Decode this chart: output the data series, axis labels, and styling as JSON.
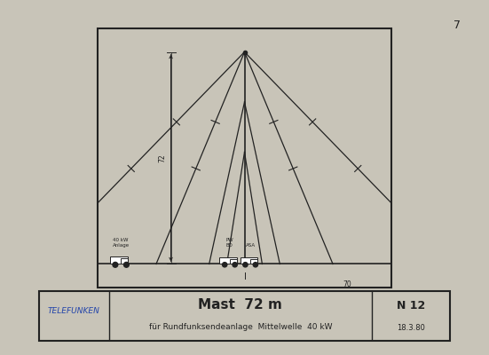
{
  "bg_color": "#f0eeea",
  "border_color": "#222222",
  "line_color": "#222222",
  "page_bg": "#c8c4b8",
  "title_main": "Mast  72 m",
  "title_sub": "für Rundfunksendeanlage  Mittelwelle  40 kW",
  "telefunken_label": "TELEFUNKEN",
  "n12_label": "N 12",
  "date_label": "18.3.80",
  "page_num": "7",
  "dim_70_label": "70",
  "dim_72_label": "72",
  "label_40kw": "40 kW\nAnlage",
  "label_pw": "PW\nBD   ASA"
}
